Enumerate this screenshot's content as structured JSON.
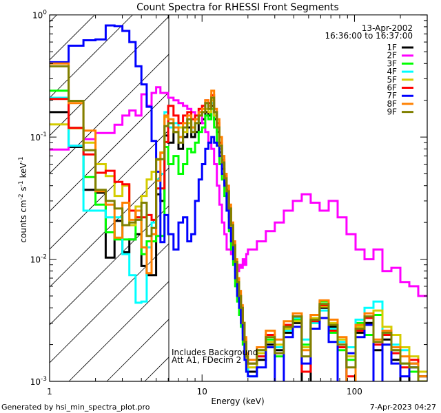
{
  "chart_data": {
    "type": "line",
    "title": "Count Spectra for RHESSI Front Segments",
    "xlabel": "Energy (keV)",
    "ylabel_parts": [
      "counts cm",
      "-2",
      " s",
      "-1",
      " keV",
      "-1"
    ],
    "xscale": "log",
    "yscale": "log",
    "xlim": [
      1,
      300
    ],
    "ylim": [
      0.001,
      1
    ],
    "x_tick_labels": [
      {
        "value": 1,
        "label": "1"
      },
      {
        "value": 10,
        "label": "10"
      },
      {
        "value": 100,
        "label": "100"
      }
    ],
    "y_tick_labels": [
      {
        "value": 1,
        "base": "10",
        "exp": "0"
      },
      {
        "value": 0.1,
        "base": "10",
        "exp": "-1"
      },
      {
        "value": 0.01,
        "base": "10",
        "exp": "-2"
      },
      {
        "value": 0.001,
        "base": "10",
        "exp": "-3"
      }
    ],
    "legend_placement": "top-right",
    "legend_header": [
      "13-Apr-2002",
      "16:36:00 to 16:37:00"
    ],
    "annotations": [
      "Includes Background",
      "Att A1, FDecim 2"
    ],
    "attenuator_region_keV": [
      1,
      6
    ],
    "energy_edges_keV": [
      1,
      1.333,
      1.667,
      2,
      2.333,
      2.667,
      3,
      3.333,
      3.667,
      4,
      4.333,
      4.667,
      5,
      5.333,
      5.667,
      6,
      6.5,
      7,
      7.5,
      8,
      8.5,
      9,
      9.5,
      10,
      10.5,
      11,
      11.5,
      12,
      12.5,
      13,
      13.5,
      14,
      14.5,
      15,
      15.5,
      16,
      16.5,
      17,
      17.5,
      18,
      18.5,
      19,
      19.5,
      20,
      22.9,
      26.2,
      30.0,
      34.4,
      39.4,
      45.1,
      51.6,
      59.1,
      67.7,
      77.5,
      88.7,
      101.6,
      116.3,
      133.2,
      152.5,
      174.6,
      199.9,
      228.9,
      262.0,
      300
    ],
    "series": [
      {
        "name": "1F",
        "color": "#000000",
        "values": [
          0.16,
          0.083,
          0.037,
          0.035,
          0.0103,
          0.0206,
          0.0114,
          0.0145,
          0.016,
          0.0088,
          0.0074,
          0.0074,
          0.034,
          0.03,
          0.103,
          0.09,
          0.11,
          0.08,
          0.1,
          0.12,
          0.1,
          0.11,
          0.13,
          0.14,
          0.16,
          0.15,
          0.18,
          0.14,
          0.11,
          0.075,
          0.055,
          0.042,
          0.032,
          0.022,
          0.016,
          0.011,
          0.008,
          0.0055,
          0.0045,
          0.0035,
          0.0025,
          0.0018,
          0.0014,
          0.0012,
          0.0015,
          0.002,
          0.0018,
          0.0025,
          0.003,
          0.0009,
          0.0035,
          0.004,
          0.0028,
          0.002,
          0.0008,
          0.0025,
          0.003,
          0.0018,
          0.0022,
          0.0015,
          0.0009,
          0.0014,
          0.0011
        ]
      },
      {
        "name": "2F",
        "color": "#ff00ff",
        "values": [
          0.079,
          0.085,
          0.096,
          0.108,
          0.108,
          0.126,
          0.15,
          0.165,
          0.15,
          0.224,
          0.18,
          0.23,
          0.256,
          0.23,
          0.23,
          0.21,
          0.2,
          0.19,
          0.18,
          0.17,
          0.16,
          0.14,
          0.15,
          0.13,
          0.11,
          0.09,
          0.08,
          0.06,
          0.04,
          0.028,
          0.02,
          0.016,
          0.012,
          0.012,
          0.011,
          0.0095,
          0.0085,
          0.008,
          0.009,
          0.0085,
          0.01,
          0.009,
          0.011,
          0.012,
          0.014,
          0.017,
          0.02,
          0.025,
          0.03,
          0.034,
          0.029,
          0.025,
          0.03,
          0.022,
          0.016,
          0.012,
          0.01,
          0.012,
          0.008,
          0.0085,
          0.0065,
          0.006,
          0.005
        ]
      },
      {
        "name": "3F",
        "color": "#00ff00",
        "values": [
          0.24,
          0.119,
          0.047,
          0.028,
          0.0166,
          0.0145,
          0.0145,
          0.0145,
          0.022,
          0.011,
          0.014,
          0.014,
          0.0155,
          0.0155,
          0.083,
          0.06,
          0.07,
          0.05,
          0.06,
          0.08,
          0.075,
          0.09,
          0.11,
          0.12,
          0.15,
          0.14,
          0.17,
          0.12,
          0.09,
          0.06,
          0.045,
          0.033,
          0.025,
          0.017,
          0.012,
          0.009,
          0.006,
          0.0045,
          0.0035,
          0.0028,
          0.002,
          0.0016,
          0.0012,
          0.0014,
          0.0018,
          0.0022,
          0.0016,
          0.0028,
          0.0032,
          0.002,
          0.003,
          0.0045,
          0.0025,
          0.0018,
          0.0015,
          0.003,
          0.0024,
          0.0035,
          0.002,
          0.0018,
          0.0014,
          0.0012,
          0.0009
        ]
      },
      {
        "name": "4F",
        "color": "#00ffff",
        "values": [
          0.21,
          0.085,
          0.025,
          0.025,
          0.022,
          0.022,
          0.011,
          0.0074,
          0.0044,
          0.0045,
          0.0125,
          0.02,
          0.045,
          0.05,
          0.16,
          0.12,
          0.13,
          0.1,
          0.12,
          0.14,
          0.11,
          0.13,
          0.15,
          0.16,
          0.19,
          0.17,
          0.19,
          0.15,
          0.12,
          0.08,
          0.06,
          0.045,
          0.034,
          0.024,
          0.017,
          0.012,
          0.008,
          0.006,
          0.0045,
          0.0034,
          0.0024,
          0.0018,
          0.0013,
          0.0011,
          0.0016,
          0.0021,
          0.0019,
          0.0026,
          0.0033,
          0.0022,
          0.003,
          0.0038,
          0.0027,
          0.0021,
          0.0019,
          0.0032,
          0.004,
          0.0045,
          0.0025,
          0.002,
          0.0018,
          0.0013,
          0.0012
        ]
      },
      {
        "name": "5F",
        "color": "#d4cc00",
        "values": [
          0.127,
          0.118,
          0.09,
          0.06,
          0.048,
          0.033,
          0.04,
          0.019,
          0.027,
          0.033,
          0.045,
          0.052,
          0.065,
          0.075,
          0.146,
          0.13,
          0.11,
          0.12,
          0.11,
          0.13,
          0.12,
          0.14,
          0.15,
          0.16,
          0.17,
          0.16,
          0.2,
          0.15,
          0.12,
          0.08,
          0.06,
          0.045,
          0.035,
          0.025,
          0.018,
          0.012,
          0.009,
          0.006,
          0.005,
          0.004,
          0.003,
          0.002,
          0.0015,
          0.0013,
          0.0017,
          0.0021,
          0.002,
          0.0027,
          0.0031,
          0.0019,
          0.0033,
          0.0041,
          0.003,
          0.0022,
          0.0016,
          0.0028,
          0.0034,
          0.0038,
          0.0028,
          0.0024,
          0.0019,
          0.0016,
          0.0012
        ]
      },
      {
        "name": "6F",
        "color": "#ff0000",
        "values": [
          0.205,
          0.119,
          0.072,
          0.051,
          0.053,
          0.043,
          0.041,
          0.025,
          0.022,
          0.022,
          0.023,
          0.021,
          0.038,
          0.038,
          0.091,
          0.18,
          0.15,
          0.13,
          0.15,
          0.16,
          0.14,
          0.15,
          0.17,
          0.18,
          0.2,
          0.19,
          0.22,
          0.16,
          0.13,
          0.09,
          0.065,
          0.048,
          0.037,
          0.026,
          0.019,
          0.013,
          0.0095,
          0.0065,
          0.005,
          0.004,
          0.003,
          0.0022,
          0.0016,
          0.0014,
          0.0016,
          0.0024,
          0.0017,
          0.0029,
          0.0034,
          0.0012,
          0.0031,
          0.0042,
          0.0026,
          0.0019,
          0.0011,
          0.0026,
          0.0033,
          0.002,
          0.0024,
          0.0017,
          0.0013,
          0.0015,
          0.001
        ]
      },
      {
        "name": "7F",
        "color": "#0000ff",
        "values": [
          0.41,
          0.56,
          0.62,
          0.63,
          0.82,
          0.81,
          0.74,
          0.6,
          0.38,
          0.27,
          0.177,
          0.093,
          0.052,
          0.0138,
          0.023,
          0.016,
          0.012,
          0.02,
          0.022,
          0.014,
          0.016,
          0.03,
          0.045,
          0.06,
          0.08,
          0.09,
          0.1,
          0.09,
          0.085,
          0.07,
          0.05,
          0.04,
          0.025,
          0.018,
          0.014,
          0.01,
          0.007,
          0.005,
          0.004,
          0.003,
          0.0022,
          0.0015,
          0.0012,
          0.0011,
          0.0013,
          0.0019,
          0.0008,
          0.0023,
          0.0028,
          0.0014,
          0.0027,
          0.0033,
          0.0021,
          0.0007,
          0.0017,
          0.0023,
          0.0029,
          0.0008,
          0.002,
          0.0014,
          0.0011,
          0.0013,
          0.0009
        ]
      },
      {
        "name": "8F",
        "color": "#ff8000",
        "values": [
          0.4,
          0.19,
          0.113,
          0.036,
          0.028,
          0.015,
          0.029,
          0.021,
          0.025,
          0.0125,
          0.0077,
          0.016,
          0.044,
          0.074,
          0.15,
          0.14,
          0.12,
          0.1,
          0.13,
          0.15,
          0.12,
          0.14,
          0.16,
          0.17,
          0.2,
          0.18,
          0.24,
          0.17,
          0.14,
          0.1,
          0.07,
          0.05,
          0.04,
          0.028,
          0.02,
          0.014,
          0.01,
          0.007,
          0.0055,
          0.0042,
          0.003,
          0.0023,
          0.0017,
          0.0015,
          0.0019,
          0.0026,
          0.0022,
          0.0031,
          0.0036,
          0.0018,
          0.0035,
          0.0046,
          0.0032,
          0.0023,
          0.0009,
          0.0029,
          0.0036,
          0.0022,
          0.0026,
          0.0019,
          0.0016,
          0.0014,
          0.0011
        ]
      },
      {
        "name": "9F",
        "color": "#808000",
        "values": [
          0.38,
          0.198,
          0.078,
          0.037,
          0.03,
          0.026,
          0.019,
          0.02,
          0.021,
          0.029,
          0.0155,
          0.018,
          0.066,
          0.066,
          0.123,
          0.13,
          0.11,
          0.09,
          0.12,
          0.14,
          0.11,
          0.13,
          0.15,
          0.16,
          0.19,
          0.17,
          0.21,
          0.16,
          0.12,
          0.085,
          0.062,
          0.046,
          0.036,
          0.026,
          0.019,
          0.013,
          0.0095,
          0.0065,
          0.005,
          0.004,
          0.003,
          0.0021,
          0.0016,
          0.0014,
          0.0018,
          0.0023,
          0.0017,
          0.0028,
          0.0034,
          0.0016,
          0.0032,
          0.0043,
          0.0029,
          0.002,
          0.0013,
          0.0027,
          0.0034,
          0.0021,
          0.0025,
          0.0018,
          0.0014,
          0.0013,
          0.001
        ]
      }
    ]
  },
  "footer": {
    "generated_by": "Generated by hsi_min_spectra_plot.pro",
    "timestamp": "7-Apr-2023 04:27"
  }
}
